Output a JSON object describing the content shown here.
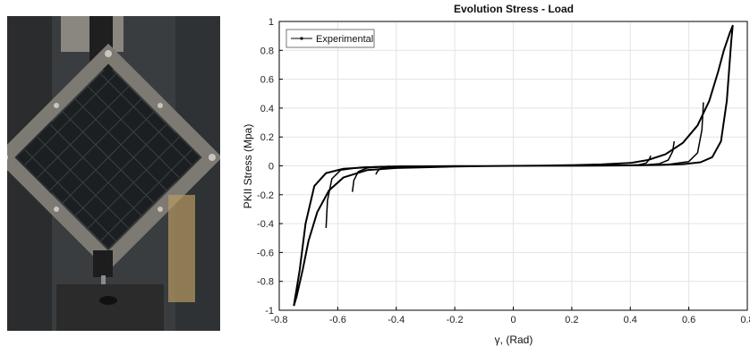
{
  "photo": {
    "colors": {
      "background": "#3a3d40",
      "frame": "#6e6a64",
      "specimen": "#1b1f22",
      "fixture": "#2b2b2b"
    }
  },
  "chart_data": {
    "type": "line",
    "title": "Evolution Stress - Load",
    "xlabel": "γ, (Rad)",
    "ylabel": "PKII Stress (Mpa)",
    "xlim": [
      -0.8,
      0.8
    ],
    "ylim": [
      -1,
      1
    ],
    "xticks": [
      "-0.8",
      "-0.6",
      "-0.4",
      "-0.2",
      "0",
      "0.2",
      "0.4",
      "0.6",
      "0.8"
    ],
    "yticks": [
      "-1",
      "-0.8",
      "-0.6",
      "-0.4",
      "-0.2",
      "0",
      "0.2",
      "0.4",
      "0.6",
      "0.8",
      "1"
    ],
    "grid": true,
    "legend_position": "top-left",
    "series": [
      {
        "name": "Experimental",
        "color": "#000000",
        "x": [
          -0.75,
          -0.74,
          -0.72,
          -0.7,
          -0.67,
          -0.63,
          -0.58,
          -0.5,
          -0.4,
          -0.3,
          -0.2,
          -0.1,
          0.0,
          0.1,
          0.2,
          0.3,
          0.4,
          0.46,
          0.52,
          0.58,
          0.63,
          0.67,
          0.7,
          0.72,
          0.74,
          0.75,
          0.745,
          0.73,
          0.71,
          0.68,
          0.64,
          0.58,
          0.5,
          0.4,
          0.3,
          0.2,
          0.1,
          0.0,
          -0.1,
          -0.2,
          -0.3,
          -0.4,
          -0.5,
          -0.58,
          -0.64,
          -0.68,
          -0.71,
          -0.73,
          -0.75
        ],
        "y": [
          -0.97,
          -0.9,
          -0.72,
          -0.52,
          -0.32,
          -0.17,
          -0.08,
          -0.03,
          -0.015,
          -0.01,
          -0.005,
          -0.002,
          0.0,
          0.002,
          0.005,
          0.01,
          0.02,
          0.04,
          0.08,
          0.16,
          0.28,
          0.45,
          0.65,
          0.8,
          0.92,
          0.97,
          0.86,
          0.45,
          0.17,
          0.06,
          0.025,
          0.012,
          0.006,
          0.003,
          0.0015,
          0.0008,
          0.0004,
          0.0,
          -0.001,
          -0.002,
          -0.003,
          -0.005,
          -0.01,
          -0.02,
          -0.05,
          -0.14,
          -0.4,
          -0.72,
          -0.97
        ]
      }
    ],
    "unload_branches": [
      {
        "x": [
          0.47,
          0.465,
          0.455,
          0.43,
          0.38,
          0.32
        ],
        "y": [
          0.07,
          0.045,
          0.02,
          0.008,
          0.003,
          0.001
        ]
      },
      {
        "x": [
          0.55,
          0.545,
          0.53,
          0.5,
          0.44,
          0.36
        ],
        "y": [
          0.17,
          0.1,
          0.04,
          0.015,
          0.005,
          0.002
        ]
      },
      {
        "x": [
          0.65,
          0.645,
          0.63,
          0.6,
          0.53,
          0.43
        ],
        "y": [
          0.44,
          0.25,
          0.09,
          0.03,
          0.01,
          0.003
        ]
      },
      {
        "x": [
          -0.47,
          -0.465,
          -0.455,
          -0.43,
          -0.38,
          -0.32
        ],
        "y": [
          -0.06,
          -0.04,
          -0.02,
          -0.008,
          -0.003,
          -0.001
        ]
      },
      {
        "x": [
          -0.55,
          -0.545,
          -0.53,
          -0.5,
          -0.44,
          -0.36
        ],
        "y": [
          -0.18,
          -0.1,
          -0.04,
          -0.015,
          -0.005,
          -0.002
        ]
      },
      {
        "x": [
          -0.64,
          -0.635,
          -0.62,
          -0.59,
          -0.52,
          -0.42
        ],
        "y": [
          -0.43,
          -0.24,
          -0.09,
          -0.03,
          -0.01,
          -0.003
        ]
      }
    ]
  }
}
